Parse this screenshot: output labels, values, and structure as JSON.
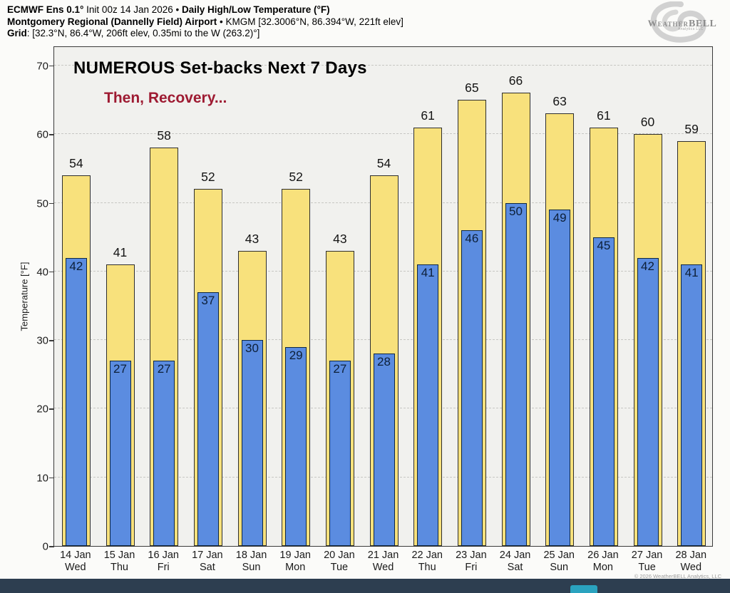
{
  "header": {
    "line1_bold1": "ECMWF Ens 0.1°",
    "line1_regular": " Init 00z 14 Jan 2026 • ",
    "line1_bold2": "Daily High/Low Temperature (°F)",
    "line2_bold": "Montgomery Regional (Dannelly Field) Airport",
    "line2_regular": " • KMGM [32.3006°N, 86.394°W, 221ft elev]",
    "line3_bold": "Grid",
    "line3_regular": ": [32.3°N, 86.4°W, 206ft elev, 0.35mi to the W (263.2)°]"
  },
  "logo": {
    "name_prefix": "Weather",
    "name_suffix": "BELL",
    "sub": "Analytics LLC"
  },
  "annotations": {
    "line1": "NUMEROUS Set-backs Next 7 Days",
    "line2": "Then, Recovery...",
    "line2_color": "#9e1b32"
  },
  "chart_data": {
    "type": "bar",
    "title": "ECMWF Ens 0.1° Init 00z 14 Jan 2026 • Daily High/Low Temperature (°F)",
    "subtitle": "Montgomery Regional (Dannelly Field) Airport • KMGM",
    "xlabel": "",
    "ylabel": "Temperature [°F]",
    "ylim": [
      0,
      72.9
    ],
    "yticks": [
      0,
      10,
      20,
      30,
      40,
      50,
      60,
      70
    ],
    "grid": "horizontal-dashed",
    "legend_position": "none",
    "categories": [
      {
        "date": "14 Jan",
        "day": "Wed"
      },
      {
        "date": "15 Jan",
        "day": "Thu"
      },
      {
        "date": "16 Jan",
        "day": "Fri"
      },
      {
        "date": "17 Jan",
        "day": "Sat"
      },
      {
        "date": "18 Jan",
        "day": "Sun"
      },
      {
        "date": "19 Jan",
        "day": "Mon"
      },
      {
        "date": "20 Jan",
        "day": "Tue"
      },
      {
        "date": "21 Jan",
        "day": "Wed"
      },
      {
        "date": "22 Jan",
        "day": "Thu"
      },
      {
        "date": "23 Jan",
        "day": "Fri"
      },
      {
        "date": "24 Jan",
        "day": "Sat"
      },
      {
        "date": "25 Jan",
        "day": "Sun"
      },
      {
        "date": "26 Jan",
        "day": "Mon"
      },
      {
        "date": "27 Jan",
        "day": "Tue"
      },
      {
        "date": "28 Jan",
        "day": "Wed"
      }
    ],
    "series": [
      {
        "name": "Daily High",
        "color": "#f8e17c",
        "values": [
          54,
          41,
          58,
          52,
          43,
          52,
          43,
          54,
          61,
          65,
          66,
          63,
          61,
          60,
          59
        ]
      },
      {
        "name": "Daily Low",
        "color": "#5b8ce0",
        "values": [
          42,
          27,
          27,
          37,
          30,
          29,
          27,
          28,
          41,
          46,
          50,
          49,
          45,
          42,
          41
        ]
      }
    ]
  },
  "footer": {
    "copyright": "© 2026 WeatherBELL Analytics, LLC",
    "button_color": "#2aa3bf",
    "bar_color": "#2d3e50"
  }
}
